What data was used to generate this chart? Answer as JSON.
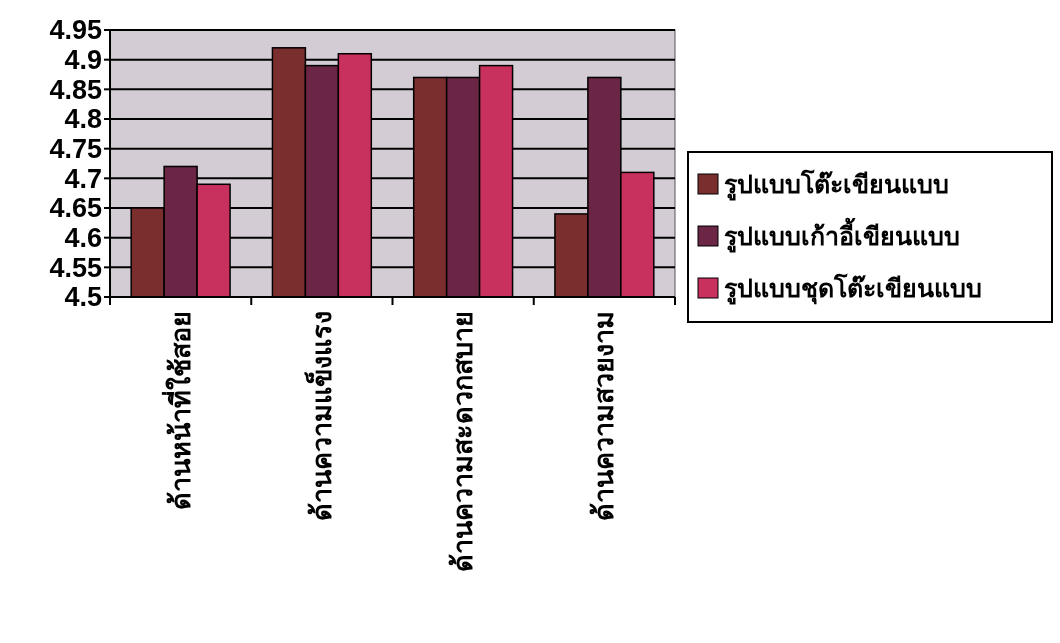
{
  "chart_data": {
    "type": "bar",
    "categories": [
      "ด้านหน้าที่ใช้สอย",
      "ด้านความแข็งแรง",
      "ด้านความสะดวกสบาย",
      "ด้านความสวยงาม"
    ],
    "series": [
      {
        "name": "รูปแบบโต๊ะเขียนแบบ",
        "color": "#7a2e2e",
        "values": [
          4.65,
          4.92,
          4.87,
          4.64
        ]
      },
      {
        "name": "รูปแบบเก้าอี้เขียนแบบ",
        "color": "#6b2545",
        "values": [
          4.72,
          4.89,
          4.87,
          4.87
        ]
      },
      {
        "name": "รูปแบบชุดโต๊ะเขียนแบบ",
        "color": "#c8305e",
        "values": [
          4.69,
          4.91,
          4.89,
          4.71
        ]
      }
    ],
    "ylim": [
      4.5,
      4.95
    ],
    "yticks": [
      4.5,
      4.55,
      4.6,
      4.65,
      4.7,
      4.75,
      4.8,
      4.85,
      4.9,
      4.95
    ],
    "grid": "y",
    "legend": "right"
  }
}
